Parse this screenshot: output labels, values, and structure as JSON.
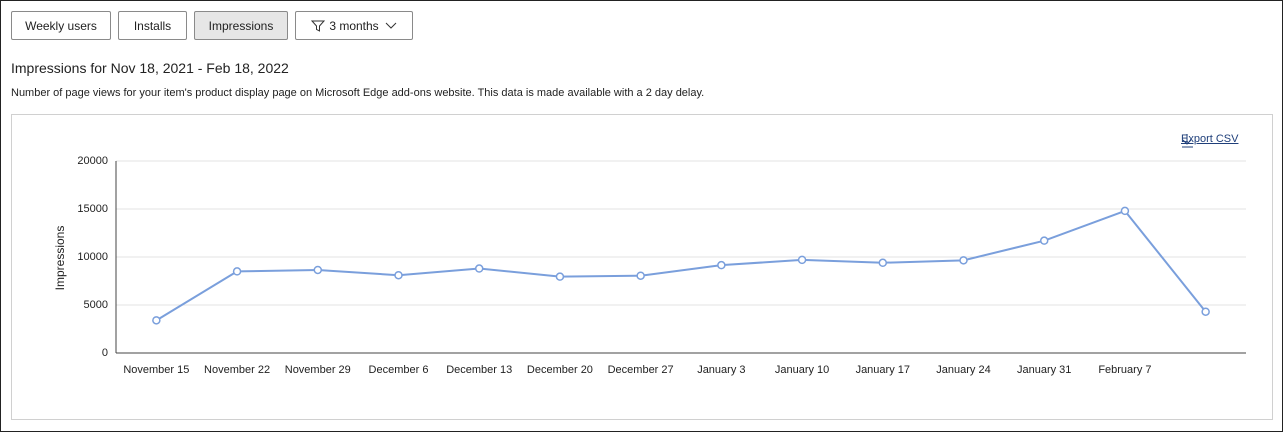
{
  "tabs": [
    "Weekly users",
    "Installs",
    "Impressions"
  ],
  "filter": "3 months",
  "heading": "Impressions for Nov 18, 2021 - Feb 18, 2022",
  "description": "Number of page views for your item's product display page on Microsoft Edge add-ons website. This data is made available with a 2 day delay.",
  "export": "Export CSV",
  "chart_data": {
    "type": "line",
    "y_label": "Impressions",
    "categories": [
      "November 15",
      "November 22",
      "November 29",
      "December 6",
      "December 13",
      "December 20",
      "December 27",
      "January 3",
      "January 10",
      "January 17",
      "January 24",
      "January 31",
      "February 7",
      null
    ],
    "values": [
      3400,
      8500,
      8650,
      8100,
      8800,
      7950,
      8050,
      9150,
      9700,
      9400,
      9650,
      11700,
      14800,
      4300
    ],
    "color": "#7a9fdc",
    "ylim": [
      0,
      20000
    ],
    "yticks": [
      0,
      5000,
      10000,
      15000,
      20000
    ],
    "grid": true
  }
}
